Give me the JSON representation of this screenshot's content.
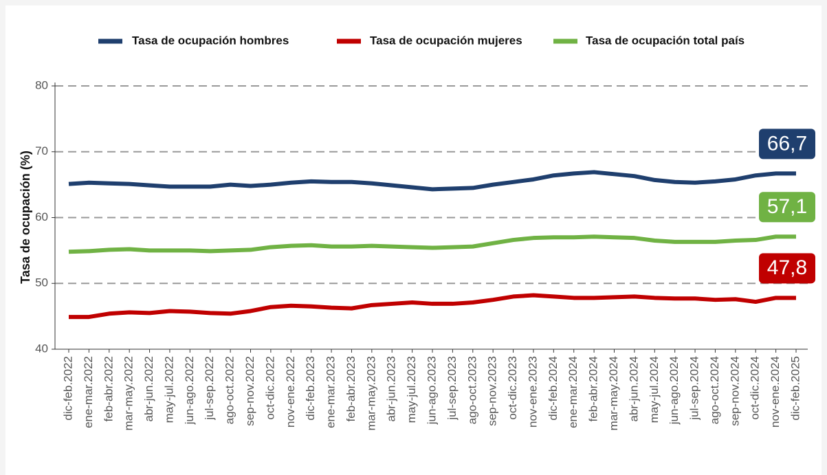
{
  "chart_data": {
    "type": "line",
    "y_label": "Tasa de ocupación (%)",
    "categories": [
      "dic-feb.2022",
      "ene-mar.2022",
      "feb-abr.2022",
      "mar-may.2022",
      "abr-jun.2022",
      "may-jul.2022",
      "jun-ago.2022",
      "jul-sep.2022",
      "ago-oct.2022",
      "sep-nov.2022",
      "oct-dic.2022",
      "nov-ene.2022",
      "dic-feb.2023",
      "ene-mar.2023",
      "feb-abr.2023",
      "mar-may.2023",
      "abr-jun.2023",
      "may-jul.2023",
      "jun-ago.2023",
      "jul-sep.2023",
      "ago-oct.2023",
      "sep-nov.2023",
      "oct-dic.2023",
      "nov-ene.2023",
      "dic-feb.2024",
      "ene-mar.2024",
      "feb-abr.2024",
      "mar-may.2024",
      "abr-jun.2024",
      "may-jul.2024",
      "jun-ago.2024",
      "jul-sep.2024",
      "ago-oct.2024",
      "sep-nov.2024",
      "oct-dic.2024",
      "nov-ene.2024",
      "dic-feb.2025"
    ],
    "series": [
      {
        "name": "Tasa de ocupación hombres",
        "color": "#1f3f6e",
        "values": [
          65.1,
          65.3,
          65.2,
          65.1,
          64.9,
          64.7,
          64.7,
          64.7,
          65.0,
          64.8,
          65.0,
          65.3,
          65.5,
          65.4,
          65.4,
          65.2,
          64.9,
          64.6,
          64.3,
          64.4,
          64.5,
          65.0,
          65.4,
          65.8,
          66.4,
          66.7,
          66.9,
          66.6,
          66.3,
          65.7,
          65.4,
          65.3,
          65.5,
          65.8,
          66.4,
          66.7,
          66.7
        ],
        "value_labels": [
          null,
          null,
          null,
          null,
          null,
          null,
          null,
          null,
          null,
          null,
          null,
          null,
          null,
          null,
          null,
          null,
          null,
          null,
          null,
          null,
          null,
          null,
          null,
          null,
          null,
          null,
          null,
          null,
          null,
          null,
          null,
          null,
          null,
          null,
          null,
          null,
          "66,7"
        ]
      },
      {
        "name": "Tasa de ocupación mujeres",
        "color": "#c00000",
        "values": [
          44.9,
          44.9,
          45.4,
          45.6,
          45.5,
          45.8,
          45.7,
          45.5,
          45.4,
          45.8,
          46.4,
          46.6,
          46.5,
          46.3,
          46.2,
          46.7,
          46.9,
          47.1,
          46.9,
          46.9,
          47.1,
          47.5,
          48.0,
          48.2,
          48.0,
          47.8,
          47.8,
          47.9,
          48.0,
          47.8,
          47.7,
          47.7,
          47.5,
          47.6,
          47.2,
          47.8,
          47.8
        ],
        "value_labels": [
          null,
          null,
          null,
          null,
          null,
          null,
          null,
          null,
          null,
          null,
          null,
          null,
          null,
          null,
          null,
          null,
          null,
          null,
          null,
          null,
          null,
          null,
          null,
          null,
          null,
          null,
          null,
          null,
          null,
          null,
          null,
          null,
          null,
          null,
          null,
          null,
          "47,8"
        ]
      },
      {
        "name": "Tasa de ocupación total país",
        "color": "#70b244",
        "values": [
          54.8,
          54.9,
          55.1,
          55.2,
          55.0,
          55.0,
          55.0,
          54.9,
          55.0,
          55.1,
          55.5,
          55.7,
          55.8,
          55.6,
          55.6,
          55.7,
          55.6,
          55.5,
          55.4,
          55.5,
          55.6,
          56.1,
          56.6,
          56.9,
          57.0,
          57.0,
          57.1,
          57.0,
          56.9,
          56.5,
          56.3,
          56.3,
          56.3,
          56.5,
          56.6,
          57.1,
          57.1
        ],
        "value_labels": [
          null,
          null,
          null,
          null,
          null,
          null,
          null,
          null,
          null,
          null,
          null,
          null,
          null,
          null,
          null,
          null,
          null,
          null,
          null,
          null,
          null,
          null,
          null,
          null,
          null,
          null,
          null,
          null,
          null,
          null,
          null,
          null,
          null,
          null,
          null,
          null,
          "57,1"
        ]
      }
    ],
    "ylim": [
      40,
      80
    ],
    "yticks": [
      40,
      50,
      60,
      70,
      80
    ],
    "grid": true,
    "legend": "top"
  }
}
